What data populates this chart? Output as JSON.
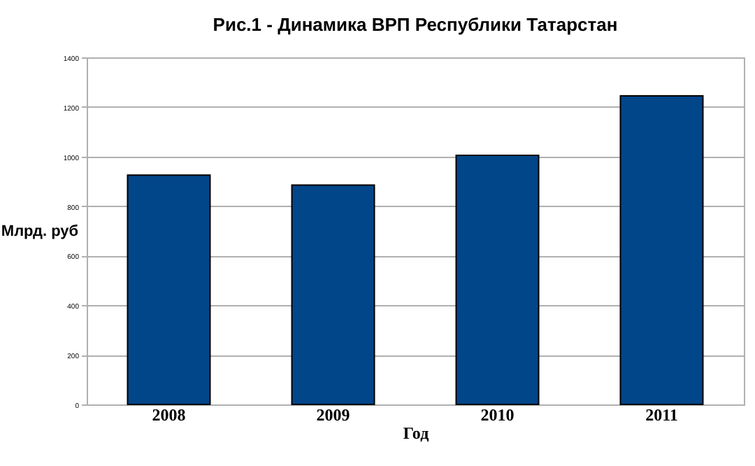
{
  "chart_data": {
    "type": "bar",
    "title": "Рис.1 - Динамика ВРП Республики Татарстан",
    "xlabel": "Год",
    "ylabel": "Млрд. руб",
    "categories": [
      "2008",
      "2009",
      "2010",
      "2011"
    ],
    "values": [
      925,
      885,
      1005,
      1245
    ],
    "color": "#02468a",
    "ylim": [
      0,
      1400
    ],
    "yticks": [
      0,
      200,
      400,
      600,
      800,
      1000,
      1200,
      1400
    ],
    "grid": "y"
  }
}
